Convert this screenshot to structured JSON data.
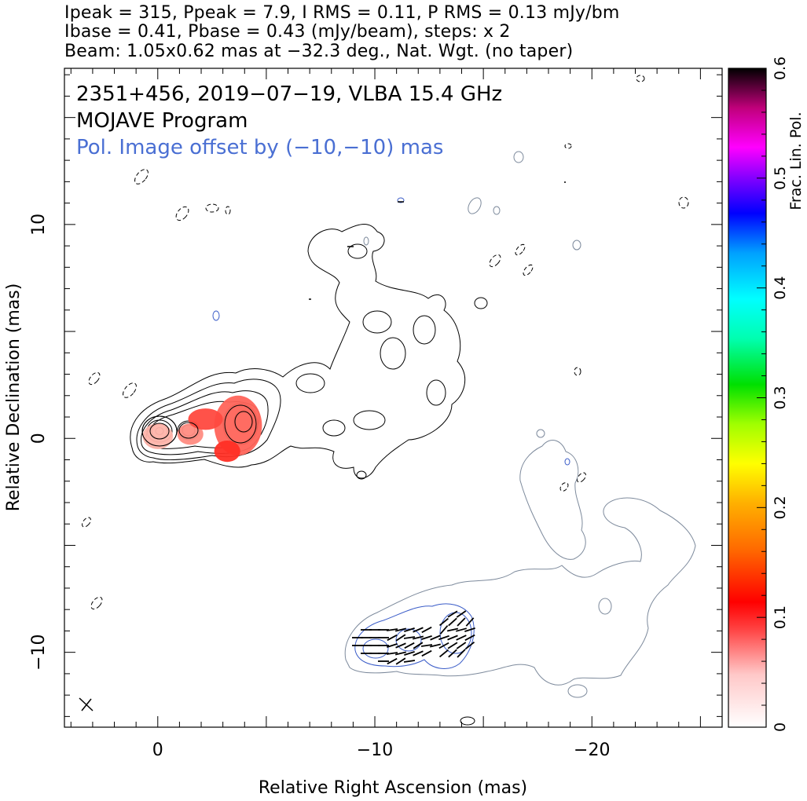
{
  "header": {
    "line1": "Ipeak = 315, Ppeak = 7.9, I RMS = 0.11, P RMS = 0.13 mJy/bm",
    "line2": "Ibase = 0.41, Pbase = 0.43 (mJy/beam), steps: x 2",
    "line3": "Beam: 1.05x0.62 mas at −32.3 deg., Nat. Wgt. (no taper)"
  },
  "annotations": {
    "source": "2351+456, 2019−07−19, VLBA 15.4 GHz",
    "program": "MOJAVE Program",
    "offset": "Pol. Image offset by (−10,−10) mas"
  },
  "colors": {
    "intensity_contour": "#000000",
    "pol_contour": "#7d8a9c",
    "pol_inner_contour": "#3a5cc8",
    "annotation_pol": "#4a6fd3",
    "evpa_vectors": "#000000"
  },
  "chart_data": {
    "type": "contour",
    "xlabel": "Relative Right Ascension (mas)",
    "ylabel": "Relative Declination (mas)",
    "xlim": [
      4.3,
      -26.0
    ],
    "ylim": [
      -13.5,
      17.3
    ],
    "xticks": [
      {
        "value": 0,
        "label": "0"
      },
      {
        "value": -10,
        "label": "−10"
      },
      {
        "value": -20,
        "label": "−20"
      }
    ],
    "yticks": [
      {
        "value": 10,
        "label": "10"
      },
      {
        "value": 0,
        "label": "0"
      },
      {
        "value": -10,
        "label": "−10"
      }
    ],
    "colorbar": {
      "label": "Frac. Lin. Pol.",
      "range": [
        0,
        0.6
      ],
      "ticks": [
        {
          "value": 0,
          "label": "0"
        },
        {
          "value": 0.1,
          "label": "0.1"
        },
        {
          "value": 0.2,
          "label": "0.2"
        },
        {
          "value": 0.3,
          "label": "0.3"
        },
        {
          "value": 0.4,
          "label": "0.4"
        },
        {
          "value": 0.5,
          "label": "0.5"
        },
        {
          "value": 0.6,
          "label": "0.6"
        }
      ]
    },
    "core": {
      "x": 0,
      "y": 0
    },
    "pol_offset": {
      "x": -10,
      "y": -10
    },
    "beam": {
      "major_mas": 1.05,
      "minor_mas": 0.62,
      "pa_deg": -32.3
    },
    "fracpol_blobs": [
      {
        "x": 0.0,
        "y": 0.1,
        "rx": 0.7,
        "ry": 0.6,
        "frac": 0.03
      },
      {
        "x": -1.5,
        "y": 0.2,
        "rx": 0.6,
        "ry": 0.5,
        "frac": 0.06
      },
      {
        "x": -3.7,
        "y": 0.6,
        "rx": 1.1,
        "ry": 1.4,
        "frac": 0.09
      },
      {
        "x": -2.2,
        "y": 0.9,
        "rx": 0.8,
        "ry": 0.5,
        "frac": 0.11
      },
      {
        "x": -3.2,
        "y": -0.6,
        "rx": 0.6,
        "ry": 0.5,
        "frac": 0.13
      }
    ]
  }
}
